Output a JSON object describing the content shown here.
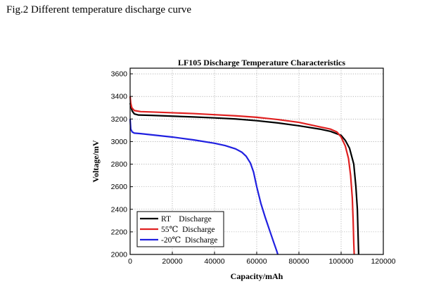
{
  "caption": "Fig.2 Different temperature discharge curve",
  "chart_data": {
    "type": "line",
    "title": "LF105 Discharge Temperature Characteristics",
    "xlabel": "Capacity/mAh",
    "ylabel": "Voltage/mV",
    "xlim": [
      0,
      120000
    ],
    "ylim": [
      2000,
      3650
    ],
    "xticks": [
      0,
      20000,
      40000,
      60000,
      80000,
      100000,
      120000
    ],
    "yticks": [
      2000,
      2200,
      2400,
      2600,
      2800,
      3000,
      3200,
      3400,
      3600
    ],
    "grid": "dotted",
    "legend_position": "bottom-left",
    "series": [
      {
        "name": "RT    Discharge",
        "color": "#000000",
        "points": [
          [
            0,
            3340
          ],
          [
            500,
            3300
          ],
          [
            1000,
            3270
          ],
          [
            2000,
            3245
          ],
          [
            4000,
            3235
          ],
          [
            10000,
            3232
          ],
          [
            20000,
            3225
          ],
          [
            30000,
            3218
          ],
          [
            40000,
            3210
          ],
          [
            50000,
            3200
          ],
          [
            60000,
            3185
          ],
          [
            70000,
            3165
          ],
          [
            80000,
            3140
          ],
          [
            90000,
            3110
          ],
          [
            95000,
            3090
          ],
          [
            100000,
            3055
          ],
          [
            102000,
            3010
          ],
          [
            104000,
            2940
          ],
          [
            106000,
            2800
          ],
          [
            107000,
            2600
          ],
          [
            107700,
            2400
          ],
          [
            108000,
            2200
          ],
          [
            108300,
            2000
          ]
        ]
      },
      {
        "name": "55℃  Discharge",
        "color": "#e02020",
        "points": [
          [
            0,
            3400
          ],
          [
            300,
            3340
          ],
          [
            800,
            3300
          ],
          [
            2000,
            3275
          ],
          [
            5000,
            3265
          ],
          [
            10000,
            3262
          ],
          [
            20000,
            3255
          ],
          [
            30000,
            3248
          ],
          [
            40000,
            3238
          ],
          [
            50000,
            3228
          ],
          [
            60000,
            3215
          ],
          [
            70000,
            3195
          ],
          [
            80000,
            3170
          ],
          [
            90000,
            3130
          ],
          [
            95000,
            3110
          ],
          [
            98000,
            3085
          ],
          [
            100000,
            3040
          ],
          [
            102000,
            2960
          ],
          [
            103500,
            2850
          ],
          [
            104500,
            2700
          ],
          [
            105300,
            2500
          ],
          [
            105700,
            2300
          ],
          [
            106000,
            2100
          ],
          [
            106200,
            2000
          ]
        ]
      },
      {
        "name": "-20℃  Discharge",
        "color": "#2020e0",
        "points": [
          [
            0,
            3200
          ],
          [
            300,
            3110
          ],
          [
            1000,
            3085
          ],
          [
            2000,
            3075
          ],
          [
            5000,
            3070
          ],
          [
            10000,
            3060
          ],
          [
            20000,
            3040
          ],
          [
            30000,
            3015
          ],
          [
            40000,
            2985
          ],
          [
            45000,
            2965
          ],
          [
            50000,
            2935
          ],
          [
            53000,
            2905
          ],
          [
            55000,
            2870
          ],
          [
            57000,
            2810
          ],
          [
            58500,
            2730
          ],
          [
            60000,
            2600
          ],
          [
            62000,
            2450
          ],
          [
            64000,
            2330
          ],
          [
            66000,
            2220
          ],
          [
            68000,
            2110
          ],
          [
            69500,
            2030
          ],
          [
            70000,
            2000
          ]
        ]
      }
    ]
  }
}
